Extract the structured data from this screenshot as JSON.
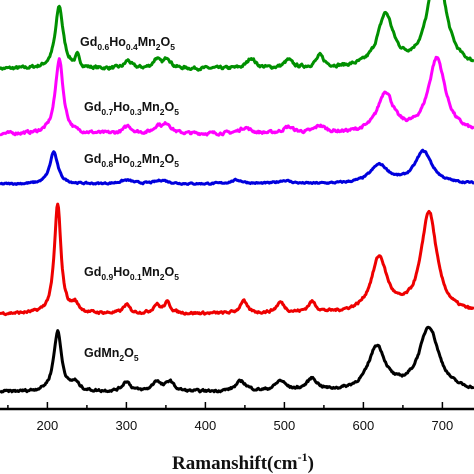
{
  "chart_data": {
    "type": "line",
    "xlabel": "Ramanshift(cm",
    "xlabel_sup": "-1",
    "xlabel_close": ")",
    "ylabel": "",
    "xlim": [
      140,
      740
    ],
    "xticks": [
      200,
      300,
      400,
      500,
      600,
      700
    ],
    "grid": false,
    "series": [
      {
        "color": "#009000",
        "label_parts": [
          [
            "Gd",
            false
          ],
          [
            "0.6",
            true
          ],
          [
            "Ho",
            false
          ],
          [
            "0.4",
            true
          ],
          [
            "Mn",
            false
          ],
          [
            "2",
            true
          ],
          [
            "O",
            false
          ],
          [
            "5",
            true
          ]
        ],
        "baseline": 0.6,
        "noise": 0.5,
        "peaks": [
          [
            215,
            6,
            12
          ],
          [
            238,
            3,
            2
          ],
          [
            302,
            5,
            1.5
          ],
          [
            338,
            5,
            1.8
          ],
          [
            352,
            5,
            2
          ],
          [
            458,
            6,
            2
          ],
          [
            505,
            6,
            1.5
          ],
          [
            545,
            6,
            2.2
          ],
          [
            628,
            12,
            10
          ],
          [
            693,
            13,
            20
          ]
        ]
      },
      {
        "color": "#ff00ff",
        "label_parts": [
          [
            "Gd",
            false
          ],
          [
            "0.7",
            true
          ],
          [
            "Ho",
            false
          ],
          [
            "0.3",
            true
          ],
          [
            "Mn",
            false
          ],
          [
            "2",
            true
          ],
          [
            "O",
            false
          ],
          [
            "5",
            true
          ]
        ],
        "baseline": 0.6,
        "noise": 0.5,
        "peaks": [
          [
            215,
            6,
            15
          ],
          [
            302,
            6,
            1.5
          ],
          [
            340,
            6,
            1.5
          ],
          [
            352,
            6,
            1.8
          ],
          [
            450,
            8,
            1.2
          ],
          [
            505,
            8,
            1.2
          ],
          [
            545,
            8,
            1.4
          ],
          [
            628,
            12,
            8
          ],
          [
            693,
            13,
            15
          ]
        ]
      },
      {
        "color": "#0000dd",
        "label_parts": [
          [
            "Gd",
            false
          ],
          [
            "0.8",
            true
          ],
          [
            "Ho",
            false
          ],
          [
            "0.2",
            true
          ],
          [
            "Mn",
            false
          ],
          [
            "2",
            true
          ],
          [
            "O",
            false
          ],
          [
            "5",
            true
          ]
        ],
        "baseline": 0.4,
        "noise": 0.3,
        "peaks": [
          [
            208,
            6,
            7
          ],
          [
            300,
            10,
            0.8
          ],
          [
            345,
            10,
            0.8
          ],
          [
            440,
            10,
            0.8
          ],
          [
            500,
            10,
            0.7
          ],
          [
            620,
            14,
            4
          ],
          [
            676,
            13,
            7
          ]
        ]
      },
      {
        "color": "#ee0000",
        "label_parts": [
          [
            "Gd",
            false
          ],
          [
            "0.9",
            true
          ],
          [
            "Ho",
            false
          ],
          [
            "0.1",
            true
          ],
          [
            "Mn",
            false
          ],
          [
            "2",
            true
          ],
          [
            "O",
            false
          ],
          [
            "5",
            true
          ]
        ],
        "baseline": 0.5,
        "noise": 0.5,
        "peaks": [
          [
            213,
            5,
            26
          ],
          [
            235,
            5,
            2
          ],
          [
            300,
            5,
            2
          ],
          [
            338,
            5,
            2
          ],
          [
            352,
            5,
            2.5
          ],
          [
            448,
            5,
            3
          ],
          [
            495,
            6,
            2.5
          ],
          [
            535,
            6,
            2.5
          ],
          [
            620,
            12,
            13
          ],
          [
            683,
            12,
            24
          ]
        ]
      },
      {
        "color": "#000000",
        "label_parts": [
          [
            "GdMn",
            false
          ],
          [
            "2",
            true
          ],
          [
            "O",
            false
          ],
          [
            "5",
            true
          ]
        ],
        "baseline": 0.5,
        "noise": 0.5,
        "peaks": [
          [
            213,
            6,
            15
          ],
          [
            235,
            6,
            2
          ],
          [
            300,
            6,
            2.5
          ],
          [
            338,
            6,
            2.5
          ],
          [
            355,
            6,
            2.5
          ],
          [
            445,
            8,
            2.5
          ],
          [
            495,
            8,
            2.5
          ],
          [
            535,
            8,
            3
          ],
          [
            617,
            13,
            11
          ],
          [
            683,
            15,
            16
          ]
        ]
      }
    ]
  }
}
